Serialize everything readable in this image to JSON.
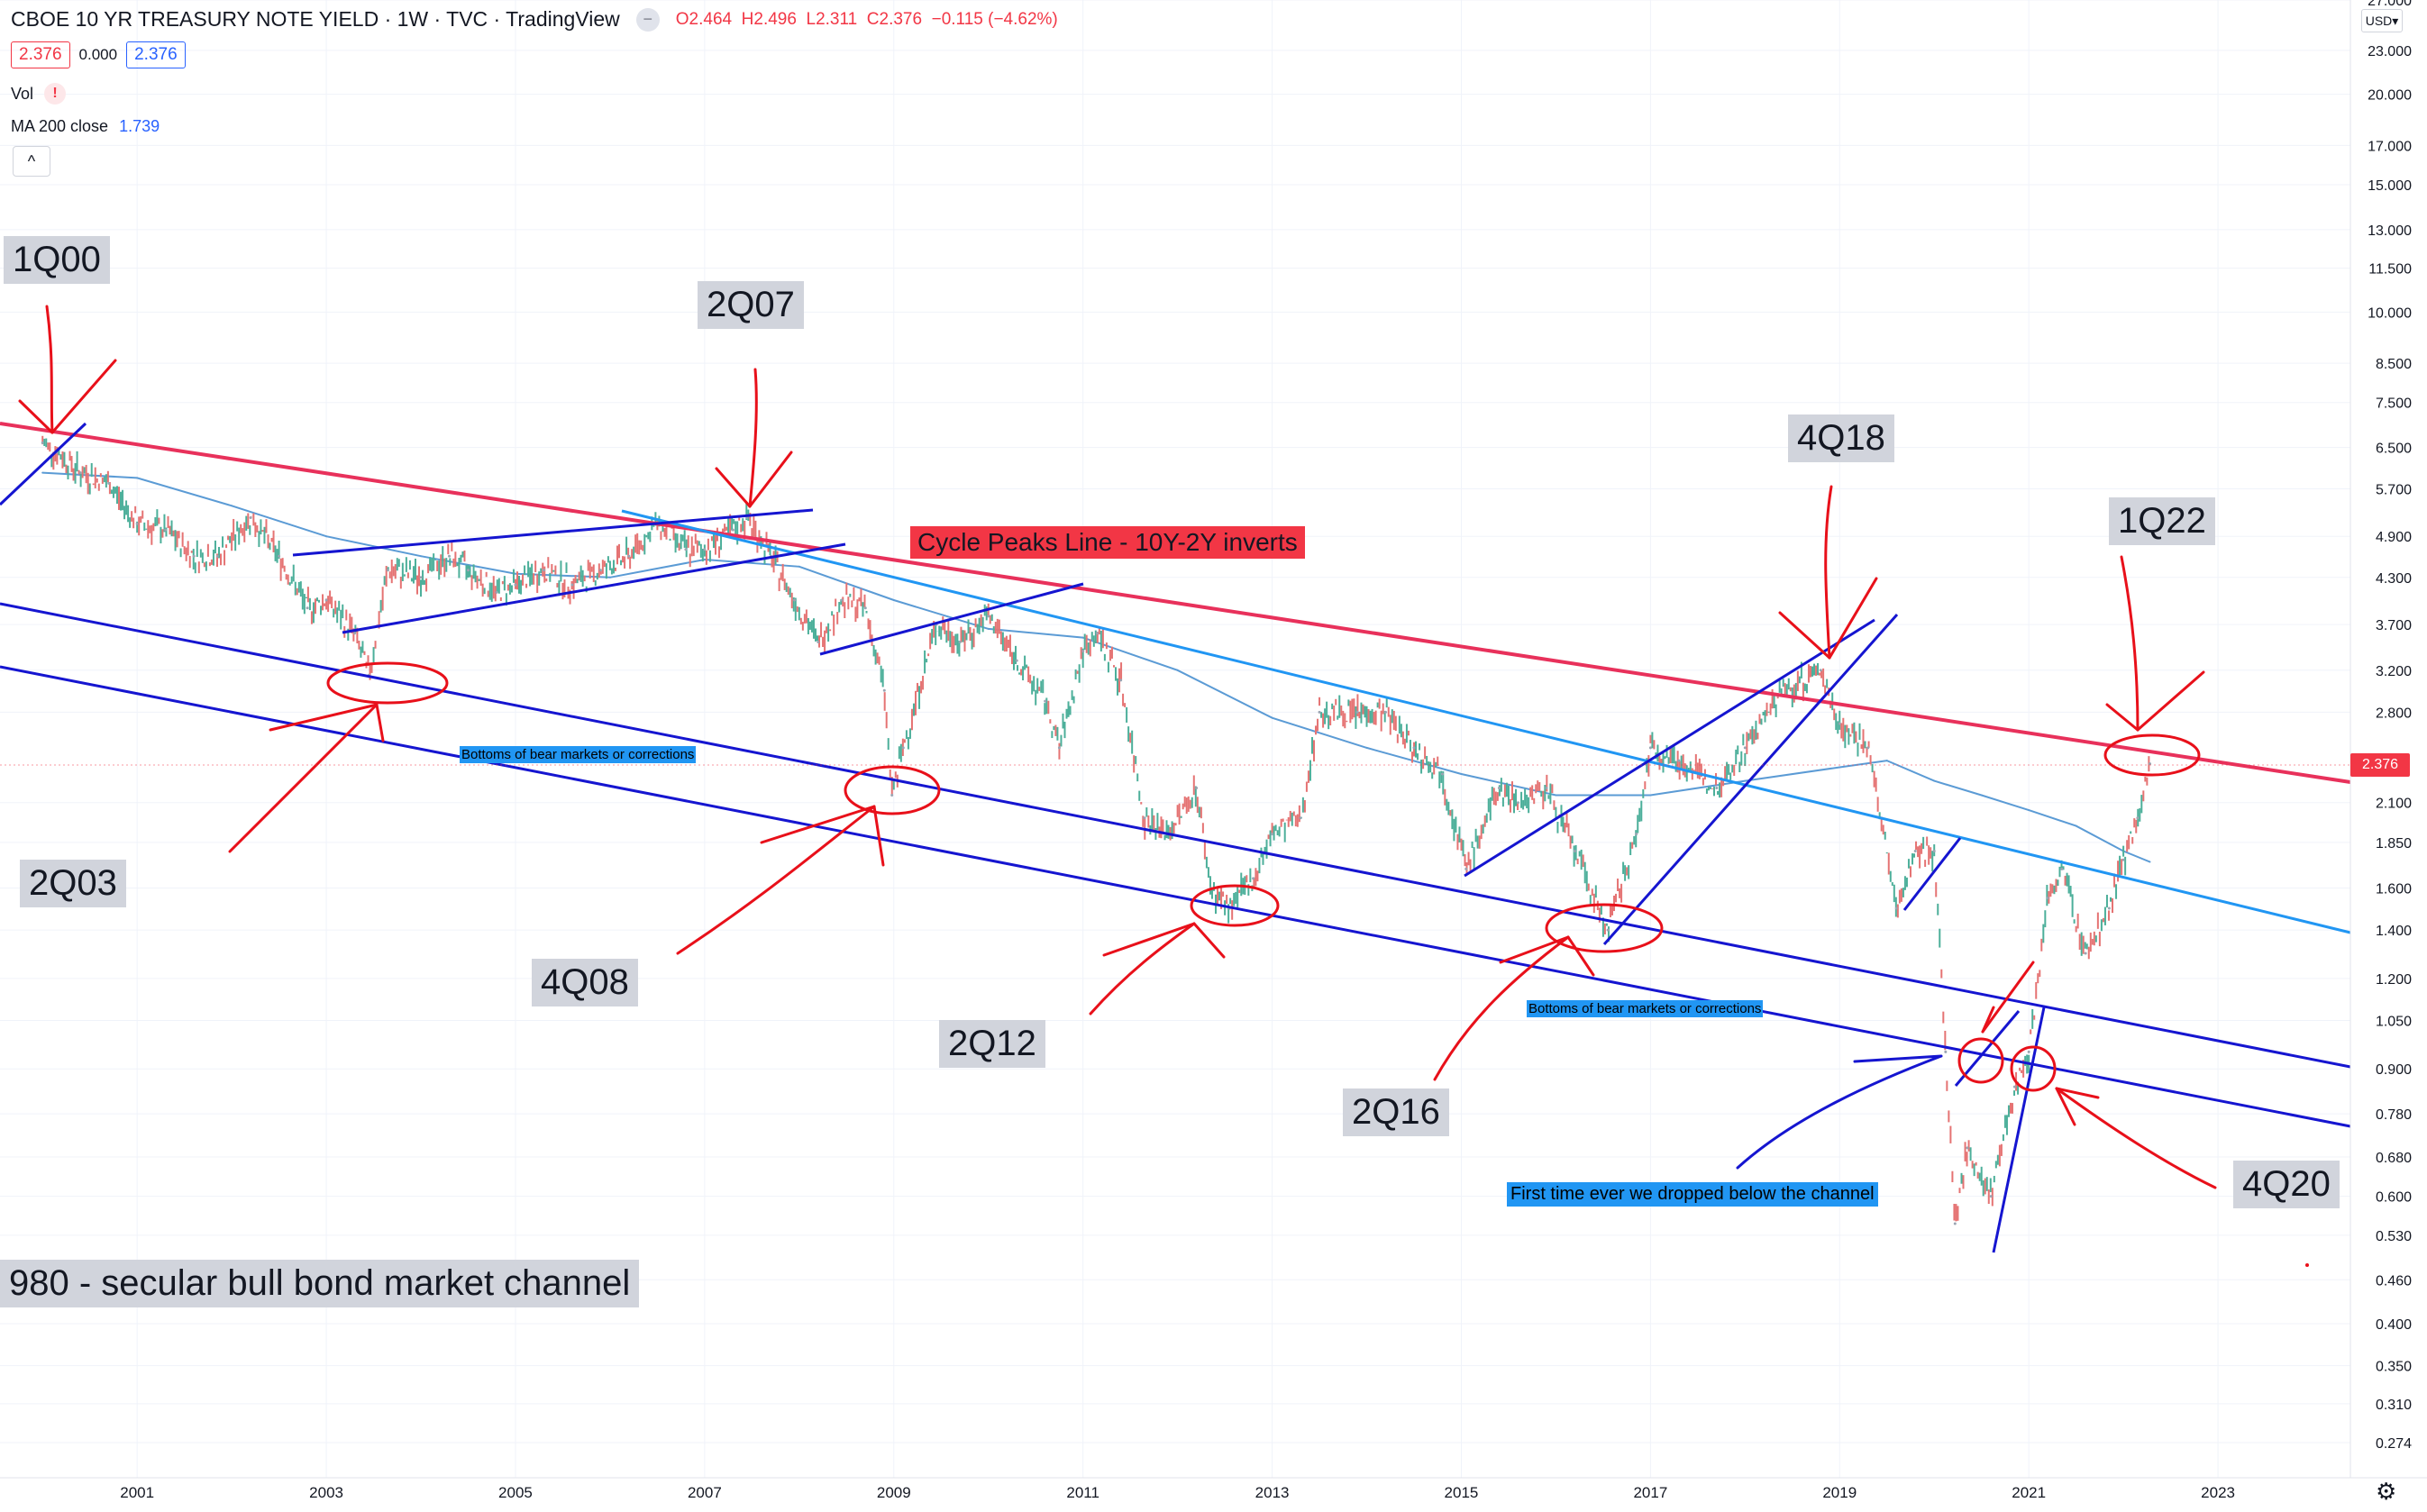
{
  "header": {
    "title": "CBOE 10 YR TREASURY NOTE YIELD · 1W · TVC · TradingView",
    "ohlc": {
      "o_label": "O",
      "o": "2.464",
      "h_label": "H",
      "h": "2.496",
      "l_label": "L",
      "l": "2.311",
      "c_label": "C",
      "c": "2.376",
      "change": "−0.115 (−4.62%)"
    },
    "badge_red": "2.376",
    "badge_plain": "0.000",
    "badge_blue": "2.376",
    "vol_label": "Vol",
    "vol_warn": "!",
    "ma_label": "MA 200 close",
    "ma_value": "1.739",
    "collapse_icon": "^"
  },
  "price_axis": {
    "currency": "USD",
    "last_price": "2.376"
  },
  "annotations": {
    "q_1q00": "1Q00",
    "q_2q07": "2Q07",
    "q_4q18": "4Q18",
    "q_1q22": "1Q22",
    "q_2q03": "2Q03",
    "q_4q08": "4Q08",
    "q_2q12": "2Q12",
    "q_2q16": "2Q16",
    "q_4q20": "4Q20",
    "channel_title": "980 - secular bull bond market channel",
    "cycle_peaks": "Cycle Peaks Line - 10Y-2Y inverts",
    "bottoms_1": "Bottoms of bear markets or corrections",
    "bottoms_2": "Bottoms of bear markets or corrections",
    "first_time": "First time ever we dropped below the channel"
  },
  "chart_data": {
    "type": "line",
    "title": "CBOE 10 YR TREASURY NOTE YIELD · 1W · TVC · TradingView",
    "xlabel": "",
    "ylabel": "",
    "y_scale": "log",
    "xlim": [
      1999.55,
      2024.4
    ],
    "ylim": [
      0.245,
      27.0
    ],
    "x_ticks": [
      "2001",
      "2003",
      "2005",
      "2007",
      "2009",
      "2011",
      "2013",
      "2015",
      "2017",
      "2019",
      "2021",
      "2023"
    ],
    "y_ticks": [
      "27.000",
      "23.000",
      "20.000",
      "17.000",
      "15.000",
      "13.000",
      "11.500",
      "10.000",
      "8.500",
      "7.500",
      "6.500",
      "5.700",
      "4.900",
      "4.300",
      "3.700",
      "3.200",
      "2.800",
      "2.100",
      "1.850",
      "1.600",
      "1.400",
      "1.200",
      "1.050",
      "0.900",
      "0.780",
      "0.680",
      "0.600",
      "0.530",
      "0.460",
      "0.400",
      "0.350",
      "0.310",
      "0.274"
    ],
    "series": [
      {
        "name": "",
        "x": [
          2000.0,
          2000.15,
          2000.4,
          2000.7,
          2001.0,
          2001.3,
          2001.6,
          2001.85,
          2002.2,
          2002.5,
          2002.8,
          2003.0,
          2003.3,
          2003.45,
          2003.65,
          2004.0,
          2004.3,
          2004.5,
          2004.8,
          2005.0,
          2005.3,
          2005.6,
          2005.9,
          2006.2,
          2006.5,
          2006.8,
          2007.0,
          2007.3,
          2007.45,
          2007.7,
          2007.95,
          2008.2,
          2008.45,
          2008.7,
          2008.9,
          2008.98,
          2009.1,
          2009.45,
          2009.7,
          2010.0,
          2010.3,
          2010.6,
          2010.75,
          2011.0,
          2011.15,
          2011.4,
          2011.65,
          2011.9,
          2012.2,
          2012.35,
          2012.55,
          2012.8,
          2013.0,
          2013.3,
          2013.5,
          2013.9,
          2014.2,
          2014.5,
          2014.8,
          2015.05,
          2015.4,
          2015.6,
          2015.9,
          2016.2,
          2016.55,
          2016.85,
          2017.0,
          2017.3,
          2017.7,
          2018.0,
          2018.35,
          2018.8,
          2019.0,
          2019.3,
          2019.6,
          2019.8,
          2020.0,
          2020.12,
          2020.22,
          2020.35,
          2020.6,
          2020.85,
          2021.0,
          2021.2,
          2021.35,
          2021.6,
          2021.85,
          2022.0,
          2022.15,
          2022.28
        ],
        "values": [
          6.6,
          6.4,
          6.0,
          5.8,
          5.1,
          5.0,
          4.6,
          4.6,
          5.2,
          4.6,
          3.9,
          4.0,
          3.6,
          3.15,
          4.4,
          4.3,
          4.6,
          4.4,
          4.1,
          4.2,
          4.4,
          4.2,
          4.4,
          4.6,
          5.1,
          4.7,
          4.7,
          5.0,
          5.2,
          4.6,
          4.0,
          3.5,
          4.0,
          3.9,
          3.0,
          2.15,
          2.5,
          3.7,
          3.5,
          3.8,
          3.3,
          2.9,
          2.5,
          3.4,
          3.6,
          3.1,
          2.0,
          1.9,
          2.2,
          1.6,
          1.5,
          1.65,
          1.9,
          2.0,
          2.8,
          2.8,
          2.8,
          2.5,
          2.3,
          1.7,
          2.2,
          2.1,
          2.2,
          1.8,
          1.4,
          1.9,
          2.5,
          2.4,
          2.2,
          2.5,
          2.95,
          3.2,
          2.7,
          2.5,
          1.5,
          1.8,
          1.8,
          0.95,
          0.55,
          0.7,
          0.6,
          0.85,
          0.95,
          1.55,
          1.7,
          1.3,
          1.5,
          1.75,
          2.0,
          2.376
        ]
      },
      {
        "name": "MA 200 close",
        "x": [
          2000.0,
          2001.0,
          2002.0,
          2003.0,
          2004.0,
          2005.0,
          2006.0,
          2007.0,
          2008.0,
          2009.0,
          2010.0,
          2011.0,
          2012.0,
          2013.0,
          2014.0,
          2015.0,
          2016.0,
          2017.0,
          2018.0,
          2019.0,
          2019.5,
          2020.0,
          2020.5,
          2021.0,
          2021.5,
          2022.0,
          2022.28
        ],
        "values": [
          6.0,
          5.9,
          5.4,
          4.9,
          4.6,
          4.35,
          4.3,
          4.55,
          4.45,
          4.0,
          3.65,
          3.55,
          3.2,
          2.75,
          2.5,
          2.3,
          2.15,
          2.15,
          2.25,
          2.35,
          2.4,
          2.25,
          2.15,
          2.05,
          1.95,
          1.8,
          1.739
        ]
      }
    ],
    "grid": true,
    "legend": "top-left"
  }
}
